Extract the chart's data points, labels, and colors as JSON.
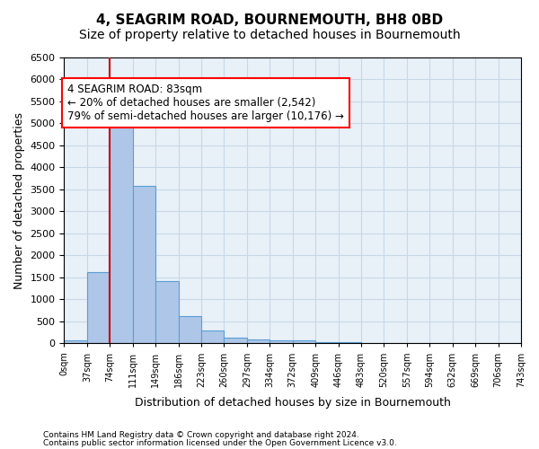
{
  "title": "4, SEAGRIM ROAD, BOURNEMOUTH, BH8 0BD",
  "subtitle": "Size of property relative to detached houses in Bournemouth",
  "xlabel": "Distribution of detached houses by size in Bournemouth",
  "ylabel": "Number of detached properties",
  "footer_line1": "Contains HM Land Registry data © Crown copyright and database right 2024.",
  "footer_line2": "Contains public sector information licensed under the Open Government Licence v3.0.",
  "bin_labels": [
    "0sqm",
    "37sqm",
    "74sqm",
    "111sqm",
    "149sqm",
    "186sqm",
    "223sqm",
    "260sqm",
    "297sqm",
    "334sqm",
    "372sqm",
    "409sqm",
    "446sqm",
    "483sqm",
    "520sqm",
    "557sqm",
    "594sqm",
    "632sqm",
    "669sqm",
    "706sqm",
    "743sqm"
  ],
  "bar_values": [
    75,
    1630,
    5080,
    3580,
    1420,
    620,
    290,
    130,
    95,
    70,
    60,
    30,
    20,
    10,
    5,
    5,
    5,
    5,
    5,
    5
  ],
  "ylim": [
    0,
    6500
  ],
  "yticks": [
    0,
    500,
    1000,
    1500,
    2000,
    2500,
    3000,
    3500,
    4000,
    4500,
    5000,
    5500,
    6000,
    6500
  ],
  "bar_color": "#aec6e8",
  "bar_edge_color": "#5a9fd4",
  "vline_x_index": 2,
  "vline_color": "#cc0000",
  "annotation_box_text": "4 SEAGRIM ROAD: 83sqm\n← 20% of detached houses are smaller (2,542)\n79% of semi-detached houses are larger (10,176) →",
  "annotation_fontsize": 8.5,
  "grid_color": "#c8d8e8",
  "background_color": "#e8f0f8",
  "title_fontsize": 11,
  "subtitle_fontsize": 10,
  "ylabel_fontsize": 9,
  "xlabel_fontsize": 9
}
